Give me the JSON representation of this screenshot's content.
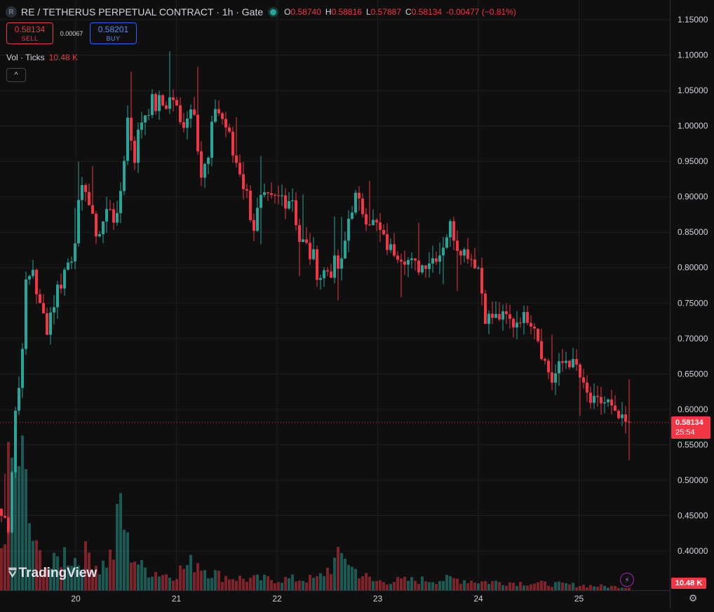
{
  "header": {
    "logo_letter": "R",
    "title": "RE / TETHERUS PERPETUAL CONTRACT · 1h · Gate",
    "ohlc": {
      "o_key": "O",
      "o_val": "0.58740",
      "h_key": "H",
      "h_val": "0.58816",
      "l_key": "L",
      "l_val": "0.57887",
      "c_key": "C",
      "c_val": "0.58134",
      "change": "-0.00477 (−0.81%)"
    }
  },
  "trade": {
    "sell_price": "0.58134",
    "sell_label": "SELL",
    "spread": "0.00067",
    "buy_price": "0.58201",
    "buy_label": "BUY"
  },
  "volume_legend": {
    "label": "Vol · Ticks",
    "value": "10.48 K"
  },
  "collapse_icon": "^",
  "branding": {
    "text": "TradingView",
    "icon": "tradingview-logo"
  },
  "last_price": {
    "price": "0.58134",
    "countdown": "25:54"
  },
  "volume_tag": "10.48 K",
  "colors": {
    "up": "#26a69a",
    "down": "#f23645",
    "background": "#0f0f0f",
    "grid": "#1e1e1e"
  },
  "chart_data": {
    "type": "candlestick",
    "ylim": [
      0.36,
      1.16
    ],
    "y_ticks": [
      "1.15000",
      "1.10000",
      "1.05000",
      "1.00000",
      "0.95000",
      "0.90000",
      "0.85000",
      "0.80000",
      "0.75000",
      "0.70000",
      "0.65000",
      "0.60000",
      "0.55000",
      "0.50000",
      "0.45000",
      "0.40000"
    ],
    "x_ticks": [
      "20",
      "21",
      "22",
      "23",
      "24",
      "25"
    ],
    "keypoints": [
      {
        "t": 0,
        "c": 0.45
      },
      {
        "t": 2,
        "c": 0.44
      },
      {
        "t": 4,
        "c": 0.6
      },
      {
        "t": 5,
        "c": 0.63
      },
      {
        "t": 7,
        "c": 0.77
      },
      {
        "t": 9,
        "c": 0.8
      },
      {
        "t": 11,
        "c": 0.74
      },
      {
        "t": 13,
        "c": 0.72
      },
      {
        "t": 16,
        "c": 0.77
      },
      {
        "t": 20,
        "c": 0.82
      },
      {
        "t": 22,
        "c": 0.88
      },
      {
        "t": 24,
        "c": 0.92
      },
      {
        "t": 26,
        "c": 0.86
      },
      {
        "t": 28,
        "c": 0.85
      },
      {
        "t": 31,
        "c": 0.89
      },
      {
        "t": 33,
        "c": 0.86
      },
      {
        "t": 36,
        "c": 1.01
      },
      {
        "t": 38,
        "c": 0.96
      },
      {
        "t": 40,
        "c": 1.01
      },
      {
        "t": 42,
        "c": 1.03
      },
      {
        "t": 46,
        "c": 1.03
      },
      {
        "t": 49,
        "c": 1.04
      },
      {
        "t": 51,
        "c": 1.0
      },
      {
        "t": 53,
        "c": 1.02
      },
      {
        "t": 55,
        "c": 1.03
      },
      {
        "t": 57,
        "c": 0.93
      },
      {
        "t": 59,
        "c": 0.95
      },
      {
        "t": 61,
        "c": 1.03
      },
      {
        "t": 64,
        "c": 1.0
      },
      {
        "t": 66,
        "c": 0.96
      },
      {
        "t": 68,
        "c": 0.94
      },
      {
        "t": 70,
        "c": 0.9
      },
      {
        "t": 72,
        "c": 0.86
      },
      {
        "t": 74,
        "c": 0.89
      },
      {
        "t": 77,
        "c": 0.89
      },
      {
        "t": 80,
        "c": 0.9
      },
      {
        "t": 83,
        "c": 0.9
      },
      {
        "t": 85,
        "c": 0.84
      },
      {
        "t": 88,
        "c": 0.82
      },
      {
        "t": 91,
        "c": 0.79
      },
      {
        "t": 94,
        "c": 0.8
      },
      {
        "t": 97,
        "c": 0.8
      },
      {
        "t": 99,
        "c": 0.87
      },
      {
        "t": 101,
        "c": 0.9
      },
      {
        "t": 104,
        "c": 0.87
      },
      {
        "t": 107,
        "c": 0.86
      },
      {
        "t": 110,
        "c": 0.83
      },
      {
        "t": 113,
        "c": 0.82
      },
      {
        "t": 116,
        "c": 0.81
      },
      {
        "t": 119,
        "c": 0.8
      },
      {
        "t": 122,
        "c": 0.81
      },
      {
        "t": 125,
        "c": 0.82
      },
      {
        "t": 128,
        "c": 0.86
      },
      {
        "t": 130,
        "c": 0.83
      },
      {
        "t": 133,
        "c": 0.82
      },
      {
        "t": 136,
        "c": 0.8
      },
      {
        "t": 138,
        "c": 0.73
      },
      {
        "t": 141,
        "c": 0.73
      },
      {
        "t": 144,
        "c": 0.73
      },
      {
        "t": 146,
        "c": 0.72
      },
      {
        "t": 148,
        "c": 0.73
      },
      {
        "t": 150,
        "c": 0.73
      },
      {
        "t": 152,
        "c": 0.72
      },
      {
        "t": 154,
        "c": 0.68
      },
      {
        "t": 157,
        "c": 0.64
      },
      {
        "t": 159,
        "c": 0.66
      },
      {
        "t": 161,
        "c": 0.67
      },
      {
        "t": 164,
        "c": 0.66
      },
      {
        "t": 166,
        "c": 0.63
      },
      {
        "t": 168,
        "c": 0.61
      },
      {
        "t": 171,
        "c": 0.61
      },
      {
        "t": 173,
        "c": 0.61
      },
      {
        "t": 175,
        "c": 0.59
      },
      {
        "t": 178,
        "c": 0.58
      },
      {
        "t": 179,
        "c": 0.58134
      }
    ],
    "volume_keypoints": [
      {
        "t": 0,
        "v": 6
      },
      {
        "t": 2,
        "v": 14
      },
      {
        "t": 4,
        "v": 20
      },
      {
        "t": 6,
        "v": 17
      },
      {
        "t": 8,
        "v": 9
      },
      {
        "t": 10,
        "v": 5
      },
      {
        "t": 14,
        "v": 3
      },
      {
        "t": 18,
        "v": 5
      },
      {
        "t": 22,
        "v": 4
      },
      {
        "t": 25,
        "v": 5
      },
      {
        "t": 28,
        "v": 3
      },
      {
        "t": 32,
        "v": 5
      },
      {
        "t": 34,
        "v": 12
      },
      {
        "t": 36,
        "v": 6
      },
      {
        "t": 40,
        "v": 3
      },
      {
        "t": 48,
        "v": 2
      },
      {
        "t": 56,
        "v": 4
      },
      {
        "t": 58,
        "v": 3
      },
      {
        "t": 62,
        "v": 2
      },
      {
        "t": 70,
        "v": 1.5
      },
      {
        "t": 90,
        "v": 1.5
      },
      {
        "t": 98,
        "v": 5
      },
      {
        "t": 100,
        "v": 3
      },
      {
        "t": 106,
        "v": 1.2
      },
      {
        "t": 130,
        "v": 1.5
      },
      {
        "t": 136,
        "v": 1.2
      },
      {
        "t": 150,
        "v": 1
      },
      {
        "t": 179,
        "v": 0.4
      }
    ],
    "volume_unit": "K"
  }
}
